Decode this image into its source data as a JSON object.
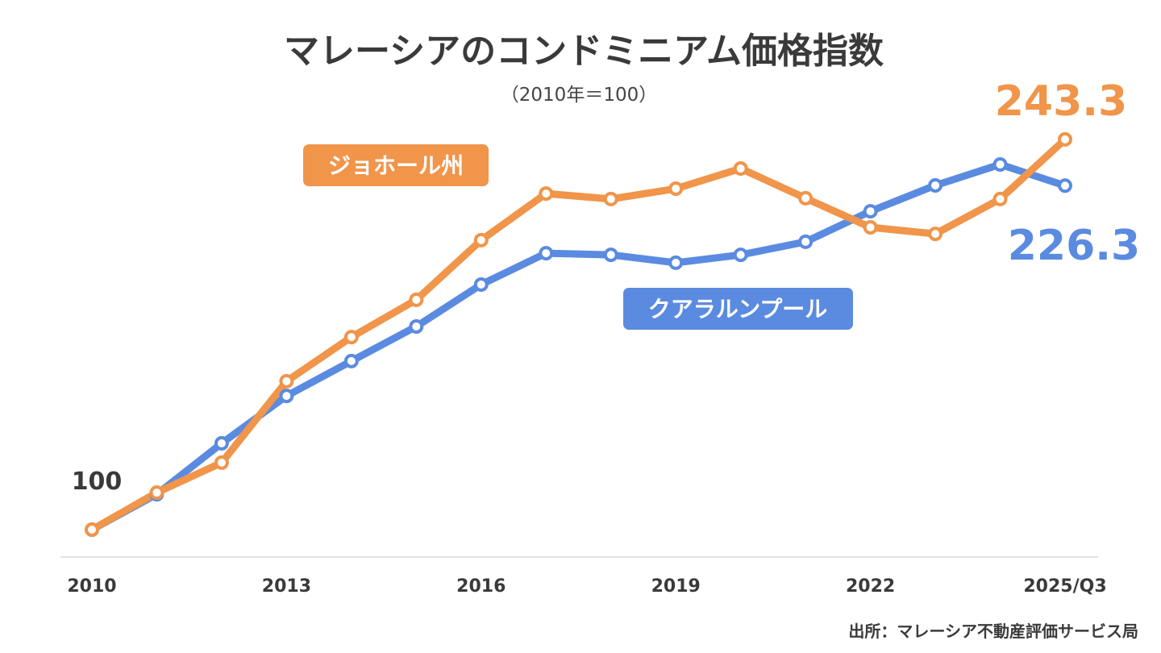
{
  "chart_data": {
    "type": "line",
    "title": "マレーシアのコンドミニアム価格指数",
    "subtitle": "（2010年＝100）",
    "source": "出所：マレーシア不動産評価サービス局",
    "x": [
      "2010",
      "2011",
      "2012",
      "2013",
      "2014",
      "2015",
      "2016",
      "2017",
      "2018",
      "2019",
      "2020",
      "2021",
      "2022",
      "2023",
      "2024",
      "2025/Q3"
    ],
    "x_tick_labels": [
      "2010",
      "2013",
      "2016",
      "2019",
      "2022",
      "2025/Q3"
    ],
    "ylim": [
      90,
      250
    ],
    "grid": false,
    "start_label": "100",
    "series": [
      {
        "name": "クアラルンプール",
        "color": "#5B8BE0",
        "end_label": "226.3",
        "values": [
          100,
          113.0,
          131.7,
          149.1,
          161.9,
          174.6,
          190.0,
          201.5,
          200.9,
          198.0,
          200.9,
          205.7,
          216.9,
          226.4,
          234.1,
          226.3
        ]
      },
      {
        "name": "ジョホール州",
        "color": "#F0954A",
        "end_label": "243.3",
        "values": [
          100,
          113.6,
          124.6,
          154.5,
          170.7,
          184.4,
          206.3,
          223.4,
          221.4,
          225.2,
          232.6,
          221.7,
          211.0,
          208.6,
          221.4,
          243.3
        ]
      }
    ]
  }
}
